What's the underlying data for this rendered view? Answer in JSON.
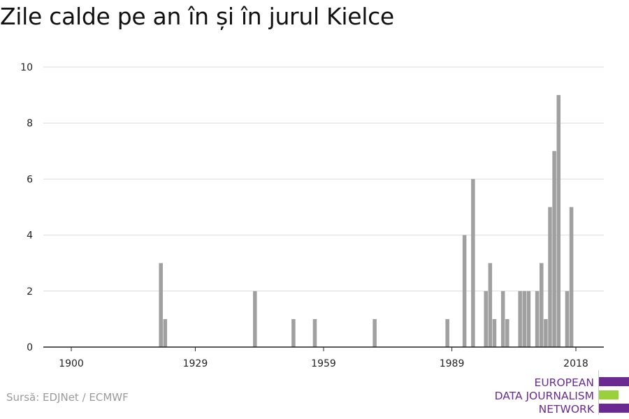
{
  "title": "Zile calde pe an în și în jurul Kielce",
  "source": "Sursă: EDJNet / ECMWF",
  "logo": {
    "lines": [
      "EUROPEAN",
      "DATA JOURNALISM",
      "NETWORK"
    ],
    "colors": {
      "purple": "#6b2a92",
      "green": "#9ad13a"
    }
  },
  "chart_data": {
    "type": "bar",
    "title": "Zile calde pe an în și în jurul Kielce",
    "xlabel": "",
    "ylabel": "",
    "xlim": [
      1900,
      2018
    ],
    "ylim": [
      0,
      10
    ],
    "x_ticks": [
      1900,
      1929,
      1959,
      1989,
      2018
    ],
    "y_ticks": [
      0,
      2,
      4,
      6,
      8,
      10
    ],
    "grid": true,
    "bar_color": "#a0a0a0",
    "x": [
      1921,
      1922,
      1943,
      1952,
      1957,
      1971,
      1988,
      1992,
      1994,
      1997,
      1998,
      1999,
      2001,
      2002,
      2005,
      2006,
      2007,
      2009,
      2010,
      2011,
      2012,
      2013,
      2014,
      2016,
      2017,
      2018
    ],
    "values": [
      3,
      1,
      2,
      1,
      1,
      1,
      1,
      4,
      6,
      2,
      3,
      1,
      2,
      1,
      2,
      2,
      2,
      2,
      3,
      1,
      5,
      7,
      9,
      2,
      5,
      0
    ]
  }
}
